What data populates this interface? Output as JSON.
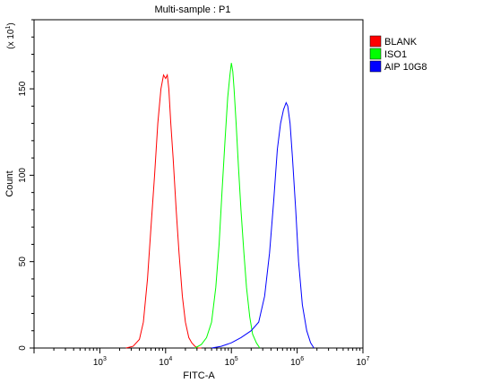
{
  "chart_data": {
    "type": "line",
    "title": "Multi-sample : P1",
    "xlabel": "FITC-A",
    "ylabel": "Count",
    "y_multiplier": "(x 10^1)",
    "x_scale": "log",
    "xlim": [
      100,
      10000000
    ],
    "ylim": [
      0,
      190
    ],
    "x_ticks": [
      {
        "value": 1000,
        "base": "10",
        "exp": "3"
      },
      {
        "value": 10000,
        "base": "10",
        "exp": "4"
      },
      {
        "value": 100000,
        "base": "10",
        "exp": "5"
      },
      {
        "value": 1000000,
        "base": "10",
        "exp": "6"
      },
      {
        "value": 10000000,
        "base": "10",
        "exp": "7"
      }
    ],
    "y_ticks": [
      0,
      50,
      100,
      150
    ],
    "legend_position": "top-right",
    "series": [
      {
        "name": "BLANK",
        "color": "#ff0000",
        "x": [
          2500,
          3200,
          4000,
          4600,
          5300,
          6000,
          6800,
          7600,
          8500,
          9300,
          10000,
          10600,
          11200,
          12000,
          13000,
          14500,
          16000,
          18000,
          20000,
          22500,
          25000,
          28000,
          31000,
          35000
        ],
        "y": [
          0,
          1,
          5,
          15,
          40,
          70,
          100,
          130,
          150,
          158,
          156,
          158,
          150,
          130,
          110,
          80,
          55,
          30,
          15,
          6,
          3,
          1,
          0,
          0
        ]
      },
      {
        "name": "ISO1",
        "color": "#00ff00",
        "x": [
          28000,
          35000,
          42000,
          50000,
          58000,
          65000,
          72000,
          80000,
          88000,
          95000,
          100000,
          105000,
          110000,
          118000,
          128000,
          140000,
          155000,
          170000,
          190000,
          210000,
          240000,
          270000
        ],
        "y": [
          0,
          2,
          6,
          15,
          35,
          60,
          90,
          120,
          145,
          158,
          165,
          160,
          150,
          130,
          105,
          80,
          55,
          35,
          18,
          8,
          3,
          0
        ]
      },
      {
        "name": "AIP 10G8",
        "color": "#0000ff",
        "x": [
          50000,
          70000,
          100000,
          140000,
          200000,
          260000,
          320000,
          380000,
          440000,
          500000,
          560000,
          620000,
          680000,
          720000,
          780000,
          850000,
          950000,
          1050000,
          1200000,
          1400000,
          1600000,
          1800000
        ],
        "y": [
          0,
          1,
          3,
          6,
          10,
          15,
          30,
          55,
          85,
          115,
          130,
          138,
          142,
          140,
          130,
          110,
          80,
          50,
          25,
          10,
          3,
          0
        ]
      }
    ]
  }
}
